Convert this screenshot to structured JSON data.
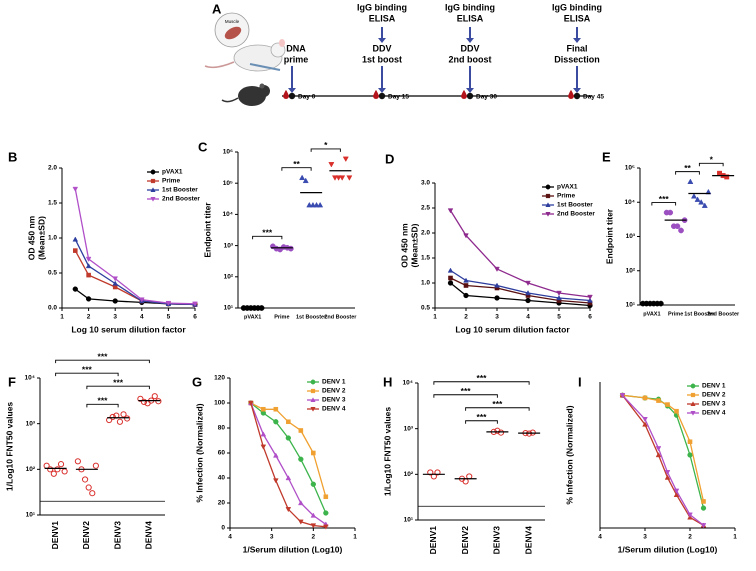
{
  "timeline": {
    "panel": "A",
    "muscle_label": "Muscle",
    "events": [
      {
        "lines": [
          "DNA",
          "prime"
        ],
        "day": "Day 0"
      },
      {
        "top": [
          "IgG binding",
          "ELISA"
        ],
        "lines": [
          "DDV",
          "1st boost"
        ],
        "day": "Day 15"
      },
      {
        "top": [
          "IgG binding",
          "ELISA"
        ],
        "lines": [
          "DDV",
          "2nd boost"
        ],
        "day": "Day 30"
      },
      {
        "top": [
          "IgG binding",
          "ELISA"
        ],
        "lines": [
          "Final",
          "Dissection"
        ],
        "day": "Day 45"
      }
    ]
  },
  "chart_data": [
    {
      "type": "line",
      "panel": "B",
      "x": [
        1.5,
        2,
        3,
        4,
        5,
        6
      ],
      "xlim": [
        1,
        6
      ],
      "xticks": [
        1,
        2,
        3,
        4,
        5,
        6
      ],
      "ylim": [
        0,
        2
      ],
      "yticks": [
        {
          "value": 0,
          "label": "0.0"
        },
        0.5,
        {
          "value": 1,
          "label": "1.0"
        },
        1.5,
        {
          "value": 2,
          "label": "2.0"
        }
      ],
      "xlabel": "Log 10 serum dilution factor",
      "ylabel": [
        "OD 450 nm",
        "(Mean±SD)"
      ],
      "legend": "upper right",
      "series": [
        {
          "name": "pVAX1",
          "color": "#000000",
          "marker": "circle",
          "values": [
            0.27,
            0.13,
            0.1,
            0.08,
            0.06,
            0.05
          ]
        },
        {
          "name": "Prime",
          "color": "#c0392b",
          "marker": "square",
          "values": [
            0.82,
            0.47,
            0.3,
            0.1,
            0.06,
            0.05
          ]
        },
        {
          "name": "1st Booster",
          "color": "#2e3e9e",
          "marker": "triangle",
          "values": [
            0.98,
            0.6,
            0.35,
            0.1,
            0.06,
            0.05
          ]
        },
        {
          "name": "2nd Booster",
          "color": "#b04fc8",
          "marker": "triangle-down",
          "values": [
            1.7,
            0.7,
            0.42,
            0.12,
            0.07,
            0.06
          ]
        }
      ]
    },
    {
      "type": "dot",
      "panel": "C",
      "categories": [
        "pVAX1",
        "Prime",
        "1st Booster",
        "2nd Booster"
      ],
      "log_scale": true,
      "ylim": [
        10,
        1000000
      ],
      "yticks": [
        {
          "value": 10,
          "label": "10¹"
        },
        {
          "value": 100,
          "label": "10²"
        },
        {
          "value": 1000,
          "label": "10³"
        },
        {
          "value": 10000,
          "label": "10⁴"
        },
        {
          "value": 100000,
          "label": "10⁵"
        },
        {
          "value": 1000000,
          "label": "10⁶"
        }
      ],
      "ylabel": "Endpoint titer",
      "colors": [
        "#000000",
        "#9b4fc0",
        "#3a4bb0",
        "#d9302c"
      ],
      "markers": [
        "circle",
        "circle",
        "triangle",
        "triangle-down"
      ],
      "values": [
        [
          10,
          10,
          10,
          10,
          10,
          10
        ],
        [
          950,
          800,
          750,
          900,
          850,
          800
        ],
        [
          150000,
          120000,
          20000,
          20000,
          20000,
          20000
        ],
        [
          400000,
          150000,
          150000,
          150000,
          600000,
          150000
        ]
      ],
      "means": [
        10,
        850,
        50000,
        250000
      ],
      "significance": [
        {
          "between": [
            "1st Booster",
            "2nd Booster"
          ],
          "label": "*"
        },
        {
          "between": [
            "Prime",
            "1st Booster"
          ],
          "label": "**"
        },
        {
          "between": [
            "pVAX1",
            "Prime"
          ],
          "label": "***"
        }
      ]
    },
    {
      "type": "line",
      "panel": "D",
      "x": [
        1.5,
        2,
        3,
        4,
        5,
        6
      ],
      "xlim": [
        1,
        6
      ],
      "xticks": [
        1,
        2,
        3,
        4,
        5,
        6
      ],
      "ylim": [
        0.5,
        3
      ],
      "yticks": [
        0.5,
        {
          "value": 1,
          "label": "1.0"
        },
        1.5,
        {
          "value": 2,
          "label": "2.0"
        },
        2.5,
        {
          "value": 3,
          "label": "3.0"
        }
      ],
      "xlabel": "Log 10 serum dilution factor",
      "ylabel": [
        "OD 450 nm",
        "(Mean±SD)"
      ],
      "legend": "upper right",
      "series": [
        {
          "name": "pVAX1",
          "color": "#000000",
          "marker": "circle",
          "values": [
            1.0,
            0.75,
            0.7,
            0.65,
            0.6,
            0.55
          ]
        },
        {
          "name": "Prime",
          "color": "#5a1010",
          "marker": "square",
          "values": [
            1.1,
            0.95,
            0.9,
            0.75,
            0.65,
            0.6
          ]
        },
        {
          "name": "1st Booster",
          "color": "#2e3e9e",
          "marker": "triangle",
          "values": [
            1.25,
            1.05,
            0.95,
            0.8,
            0.7,
            0.65
          ]
        },
        {
          "name": "2nd Booster",
          "color": "#8e2a8e",
          "marker": "triangle-down",
          "values": [
            2.45,
            1.95,
            1.28,
            1.0,
            0.8,
            0.72
          ]
        }
      ]
    },
    {
      "type": "dot",
      "panel": "E",
      "categories": [
        "pVAX1",
        "Prime",
        "1st Booster",
        "2nd Booster"
      ],
      "log_scale": true,
      "ylim": [
        10,
        100000
      ],
      "yticks": [
        {
          "value": 10,
          "label": "10¹"
        },
        {
          "value": 100,
          "label": "10²"
        },
        {
          "value": 1000,
          "label": "10³"
        },
        {
          "value": 10000,
          "label": "10⁴"
        },
        {
          "value": 100000,
          "label": "10⁵"
        }
      ],
      "ylabel": "Endpoint titer",
      "colors": [
        "#000000",
        "#9b4fc0",
        "#3a4bb0",
        "#d9302c"
      ],
      "markers": [
        "circle",
        "circle",
        "triangle",
        "square"
      ],
      "values": [
        [
          11,
          11,
          11,
          11,
          11,
          11
        ],
        [
          5000,
          5000,
          2000,
          2000,
          1500,
          3000
        ],
        [
          40000,
          15000,
          12000,
          10000,
          8000,
          20000
        ],
        [
          70000,
          60000,
          55000
        ]
      ],
      "means": [
        11,
        3000,
        18000,
        60000
      ],
      "significance": [
        {
          "between": [
            "1st Booster",
            "2nd Booster"
          ],
          "label": "*"
        },
        {
          "between": [
            "Prime",
            "1st Booster"
          ],
          "label": "**"
        },
        {
          "between": [
            "pVAX1",
            "Prime"
          ],
          "label": "***"
        }
      ]
    },
    {
      "type": "dot",
      "panel": "F",
      "categories": [
        "DENV1",
        "DENV2",
        "DENV3",
        "DENV4"
      ],
      "xtick_rotation": 90,
      "log_scale": true,
      "ylim": [
        10,
        10000
      ],
      "yticks": [
        {
          "value": 10,
          "label": "10¹"
        },
        {
          "value": 100,
          "label": "10²"
        },
        {
          "value": 1000,
          "label": "10³"
        },
        {
          "value": 10000,
          "label": "10⁴"
        }
      ],
      "ylabel": "1/Log10 FNT50 values",
      "reference_line": 20,
      "open_markers": true,
      "colors": [
        "#d9302c",
        "#d9302c",
        "#d9302c",
        "#d9302c"
      ],
      "markers": [
        "circle",
        "circle",
        "circle",
        "circle"
      ],
      "values": [
        [
          120,
          100,
          80,
          100,
          130,
          90
        ],
        [
          150,
          100,
          60,
          40,
          30,
          120
        ],
        [
          1200,
          1400,
          1500,
          1100,
          1600,
          1300
        ],
        [
          3500,
          3000,
          2800,
          3200,
          4000,
          3100
        ]
      ],
      "means": [
        105,
        100,
        1350,
        3200
      ],
      "significance": [
        {
          "between": [
            "DENV1",
            "DENV4"
          ],
          "label": "***"
        },
        {
          "between": [
            "DENV1",
            "DENV3"
          ],
          "label": "***"
        },
        {
          "between": [
            "DENV2",
            "DENV4"
          ],
          "label": "***"
        },
        {
          "between": [
            "DENV2",
            "DENV3"
          ],
          "label": "***"
        }
      ]
    },
    {
      "type": "line",
      "panel": "G",
      "x": [
        3.5,
        3.2,
        2.9,
        2.6,
        2.3,
        2.0,
        1.7
      ],
      "xlim": [
        4,
        1
      ],
      "xticks": [
        4,
        3,
        2,
        1
      ],
      "ylim": [
        0,
        120
      ],
      "yticks": [
        0,
        20,
        40,
        60,
        80,
        100,
        120
      ],
      "xlabel": "1/Serum dilution (Log10)",
      "ylabel": [
        "% Infection (Normalized)"
      ],
      "legend": "upper right",
      "series": [
        {
          "name": "DENV 1",
          "color": "#3cb44b",
          "marker": "circle",
          "values": [
            100,
            92,
            85,
            72,
            55,
            35,
            12
          ]
        },
        {
          "name": "DENV 2",
          "color": "#f0a030",
          "marker": "square",
          "values": [
            100,
            95,
            95,
            85,
            78,
            60,
            25
          ]
        },
        {
          "name": "DENV 3",
          "color": "#b04fc8",
          "marker": "triangle",
          "values": [
            100,
            75,
            58,
            40,
            20,
            10,
            3
          ]
        },
        {
          "name": "DENV 4",
          "color": "#c0392b",
          "marker": "triangle-down",
          "values": [
            100,
            65,
            38,
            15,
            5,
            2,
            1
          ]
        }
      ]
    },
    {
      "type": "dot",
      "panel": "H",
      "categories": [
        "DENV1",
        "DENV2",
        "DENV3",
        "DENV4"
      ],
      "xtick_rotation": 90,
      "log_scale": true,
      "ylim": [
        10,
        10000
      ],
      "yticks": [
        {
          "value": 10,
          "label": "10¹"
        },
        {
          "value": 100,
          "label": "10²"
        },
        {
          "value": 1000,
          "label": "10³"
        },
        {
          "value": 10000,
          "label": "10⁴"
        }
      ],
      "ylabel": "1/Log10 FNT50 values",
      "reference_line": 20,
      "open_markers": true,
      "colors": [
        "#d9302c",
        "#d9302c",
        "#d9302c",
        "#d9302c"
      ],
      "markers": [
        "circle",
        "circle",
        "circle",
        "circle"
      ],
      "values": [
        [
          110,
          90,
          110
        ],
        [
          80,
          70,
          90
        ],
        [
          850,
          900,
          820
        ],
        [
          800,
          780,
          820
        ]
      ],
      "means": [
        100,
        80,
        850,
        800
      ],
      "significance": [
        {
          "between": [
            "DENV1",
            "DENV4"
          ],
          "label": "***"
        },
        {
          "between": [
            "DENV1",
            "DENV3"
          ],
          "label": "***"
        },
        {
          "between": [
            "DENV2",
            "DENV4"
          ],
          "label": "***"
        },
        {
          "between": [
            "DENV2",
            "DENV3"
          ],
          "label": "***"
        }
      ]
    },
    {
      "type": "line",
      "panel": "I",
      "x": [
        3.5,
        3.0,
        2.7,
        2.5,
        2.3,
        2.0,
        1.7
      ],
      "xlim": [
        4,
        1
      ],
      "xticks": [
        4,
        3,
        2,
        1
      ],
      "ylim": [
        0,
        110
      ],
      "xlabel": "1/Serum dilution (Log10)",
      "ylabel": [
        "% Infection (Normalized)"
      ],
      "legend": "upper right",
      "series": [
        {
          "name": "DENV 1",
          "color": "#3cb44b",
          "marker": "circle",
          "values": [
            100,
            98,
            97,
            92,
            85,
            55,
            15
          ]
        },
        {
          "name": "DENV 2",
          "color": "#f0a030",
          "marker": "square",
          "values": [
            100,
            98,
            96,
            93,
            88,
            65,
            20
          ]
        },
        {
          "name": "DENV 3",
          "color": "#c0392b",
          "marker": "triangle",
          "values": [
            100,
            78,
            55,
            38,
            25,
            8,
            2
          ]
        },
        {
          "name": "DENV 4",
          "color": "#b04fc8",
          "marker": "triangle-down",
          "values": [
            100,
            82,
            60,
            42,
            28,
            10,
            2
          ]
        }
      ]
    }
  ]
}
